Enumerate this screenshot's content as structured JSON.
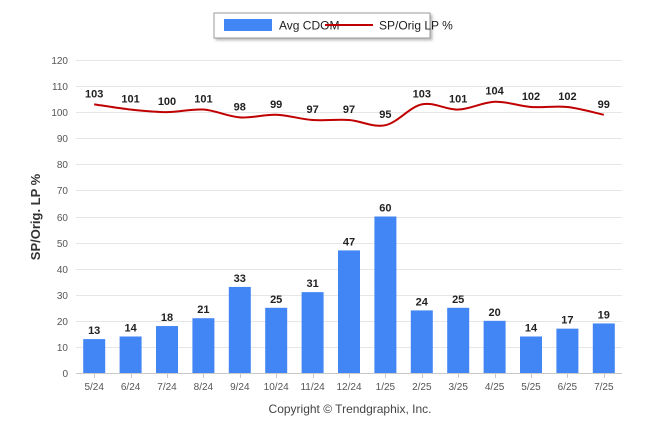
{
  "chart_data": {
    "type": "bar",
    "categories": [
      "5/24",
      "6/24",
      "7/24",
      "8/24",
      "9/24",
      "10/24",
      "11/24",
      "12/24",
      "1/25",
      "2/25",
      "3/25",
      "4/25",
      "5/25",
      "6/25",
      "7/25"
    ],
    "series": [
      {
        "name": "Avg CDOM",
        "type": "bar",
        "color": "#4285f4",
        "values": [
          13,
          14,
          18,
          21,
          33,
          25,
          31,
          47,
          60,
          24,
          25,
          20,
          14,
          17,
          19
        ]
      },
      {
        "name": "SP/Orig LP %",
        "type": "line",
        "color": "#c00000",
        "values": [
          103,
          101,
          100,
          101,
          98,
          99,
          97,
          97,
          95,
          103,
          101,
          104,
          102,
          102,
          99
        ]
      }
    ],
    "yaxis": {
      "label": "SP/Orig. LP %",
      "min": 0,
      "max": 120,
      "ticks": [
        "0",
        "10",
        "20",
        "30",
        "40",
        "50",
        "60",
        "70",
        "80",
        "90",
        "100",
        "110",
        "120"
      ]
    },
    "grid": true,
    "legend_position": "top-center"
  },
  "copyright": "Copyright © Trendgraphix, Inc."
}
